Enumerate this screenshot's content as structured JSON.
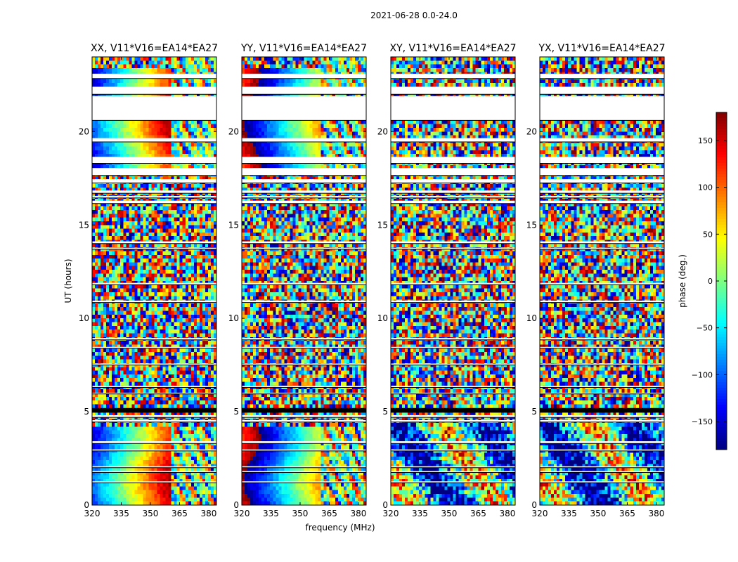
{
  "chart_data": {
    "type": "heatmap",
    "title": "2021-06-28 0.0-24.0",
    "xlabel": "frequency (MHz)",
    "ylabel": "UT (hours)",
    "xlim": [
      320,
      384
    ],
    "ylim": [
      0,
      24
    ],
    "x_ticks": [
      320,
      335,
      350,
      365,
      380
    ],
    "y_ticks": [
      0,
      5,
      10,
      15,
      20
    ],
    "panels": [
      {
        "title": "XX, V11*V16=EA14*EA27",
        "pattern": "parallel"
      },
      {
        "title": "YY, V11*V16=EA14*EA27",
        "pattern": "parallel"
      },
      {
        "title": "XY, V11*V16=EA14*EA27",
        "pattern": "cross"
      },
      {
        "title": "YX, V11*V16=EA14*EA27",
        "pattern": "cross"
      }
    ],
    "gaps_hours": [
      [
        22.84,
        23.1
      ],
      [
        22.0,
        22.4
      ],
      [
        20.6,
        21.9
      ],
      [
        19.45,
        19.65
      ],
      [
        18.3,
        18.65
      ],
      [
        17.65,
        18.05
      ],
      [
        17.25,
        17.45
      ],
      [
        16.7,
        16.85
      ],
      [
        16.45,
        16.55
      ],
      [
        16.15,
        16.3
      ],
      [
        14.0,
        14.12
      ],
      [
        13.7,
        13.78
      ],
      [
        11.8,
        11.9
      ],
      [
        10.85,
        10.95
      ],
      [
        8.85,
        8.95
      ],
      [
        8.4,
        8.47
      ],
      [
        7.5,
        7.58
      ],
      [
        6.3,
        6.38
      ],
      [
        5.95,
        6.02
      ],
      [
        4.7,
        4.82
      ],
      [
        4.45,
        4.55
      ],
      [
        3.3,
        3.42
      ],
      [
        2.9,
        2.98
      ],
      [
        2.0,
        2.08
      ],
      [
        1.75,
        1.82
      ],
      [
        1.2,
        1.27
      ]
    ],
    "flagged_bands_hours": [
      [
        4.95,
        5.2
      ]
    ],
    "colorbar": {
      "label": "phase (deg.)",
      "range": [
        -180,
        180
      ],
      "ticks": [
        -150,
        -100,
        -50,
        0,
        50,
        100,
        150
      ],
      "tick_labels": [
        "−150",
        "−100",
        "−50",
        "0",
        "50",
        "100",
        "150"
      ],
      "colormap": "jet"
    }
  }
}
